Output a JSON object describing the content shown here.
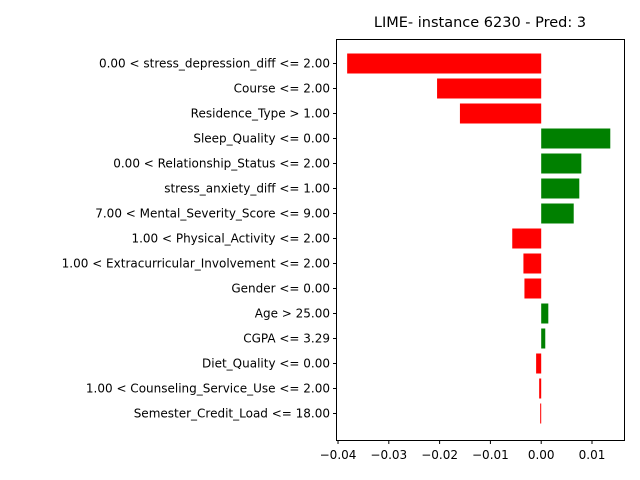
{
  "chart_data": {
    "type": "bar",
    "orientation": "horizontal",
    "title": "LIME- instance 6230 - Pred: 3",
    "xlabel": "",
    "ylabel": "",
    "xlim": [
      -0.0402,
      0.0163
    ],
    "xticks": [
      -0.04,
      -0.03,
      -0.02,
      -0.01,
      0.0,
      0.01
    ],
    "xtick_labels": [
      "−0.04",
      "−0.03",
      "−0.02",
      "−0.01",
      "0.00",
      "0.01"
    ],
    "grid": false,
    "legend": false,
    "colors": {
      "negative": "#ff0000",
      "positive": "#008000"
    },
    "categories": [
      "0.00 < stress_depression_diff <= 2.00",
      "Course <= 2.00",
      "Residence_Type > 1.00",
      "Sleep_Quality <= 0.00",
      "0.00 < Relationship_Status <= 2.00",
      "stress_anxiety_diff <= 1.00",
      "7.00 < Mental_Severity_Score <= 9.00",
      "1.00 < Physical_Activity <= 2.00",
      "1.00 < Extracurricular_Involvement <= 2.00",
      "Gender <= 0.00",
      "Age > 25.00",
      "CGPA <= 3.29",
      "Diet_Quality <= 0.00",
      "1.00 < Counseling_Service_Use <= 2.00",
      "Semester_Credit_Load <= 18.00"
    ],
    "values": [
      -0.0382,
      -0.0205,
      -0.016,
      0.0136,
      0.0079,
      0.0075,
      0.0064,
      -0.0057,
      -0.0035,
      -0.0033,
      0.0014,
      0.0008,
      -0.001,
      -0.0004,
      -0.0002
    ]
  }
}
